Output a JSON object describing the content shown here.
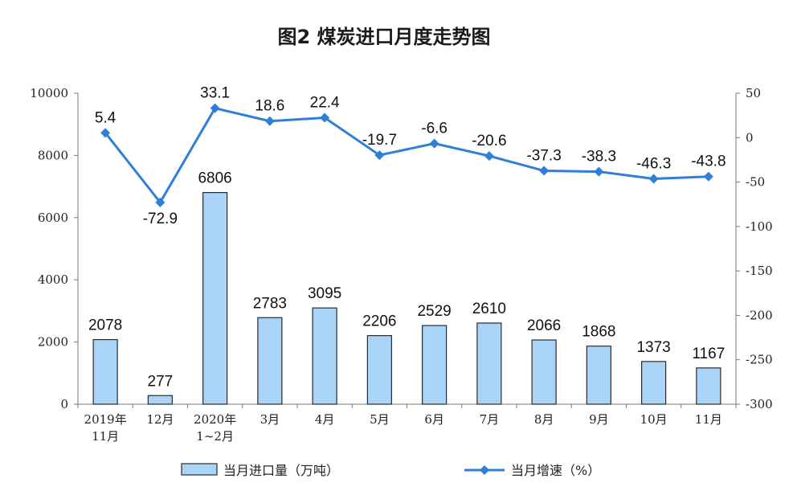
{
  "chart_data": {
    "type": "bar",
    "title": "图2  煤炭进口月度走势图",
    "categories": [
      [
        "2019年",
        "11月"
      ],
      [
        "12月"
      ],
      [
        "2020年",
        "1~2月"
      ],
      [
        "3月"
      ],
      [
        "4月"
      ],
      [
        "5月"
      ],
      [
        "6月"
      ],
      [
        "7月"
      ],
      [
        "8月"
      ],
      [
        "9月"
      ],
      [
        "10月"
      ],
      [
        "11月"
      ]
    ],
    "series": [
      {
        "name": "当月进口量（万吨）",
        "type": "bar",
        "axis": "left",
        "color": "#a9d3f7",
        "values": [
          2078,
          277,
          6806,
          2783,
          3095,
          2206,
          2529,
          2610,
          2066,
          1868,
          1373,
          1167
        ],
        "labels": [
          "2078",
          "277",
          "6806",
          "2783",
          "3095",
          "2206",
          "2529",
          "2610",
          "2066",
          "1868",
          "1373",
          "1167"
        ]
      },
      {
        "name": "当月增速（%）",
        "type": "line",
        "axis": "right",
        "color": "#2f7ed8",
        "values": [
          5.4,
          -72.9,
          33.1,
          18.6,
          22.4,
          -19.7,
          -6.6,
          -20.6,
          -37.3,
          -38.3,
          -46.3,
          -43.8
        ],
        "labels": [
          "5.4",
          "-72.9",
          "33.1",
          "18.6",
          "22.4",
          "-19.7",
          "-6.6",
          "-20.6",
          "-37.3",
          "-38.3",
          "-46.3",
          "-43.8"
        ]
      }
    ],
    "y_left": {
      "ylim": [
        0,
        10000
      ],
      "ticks": [
        0,
        2000,
        4000,
        6000,
        8000,
        10000
      ],
      "tick_labels": [
        "0",
        "2000",
        "4000",
        "6000",
        "8000",
        "10000"
      ]
    },
    "y_right": {
      "ylim": [
        -300,
        50
      ],
      "ticks": [
        50,
        0,
        -50,
        -100,
        -150,
        -200,
        -250,
        -300
      ],
      "tick_labels": [
        "50",
        "0",
        "-50",
        "-100",
        "-150",
        "-200",
        "-250",
        "-300"
      ]
    },
    "grid": false,
    "legend_position": "bottom"
  }
}
